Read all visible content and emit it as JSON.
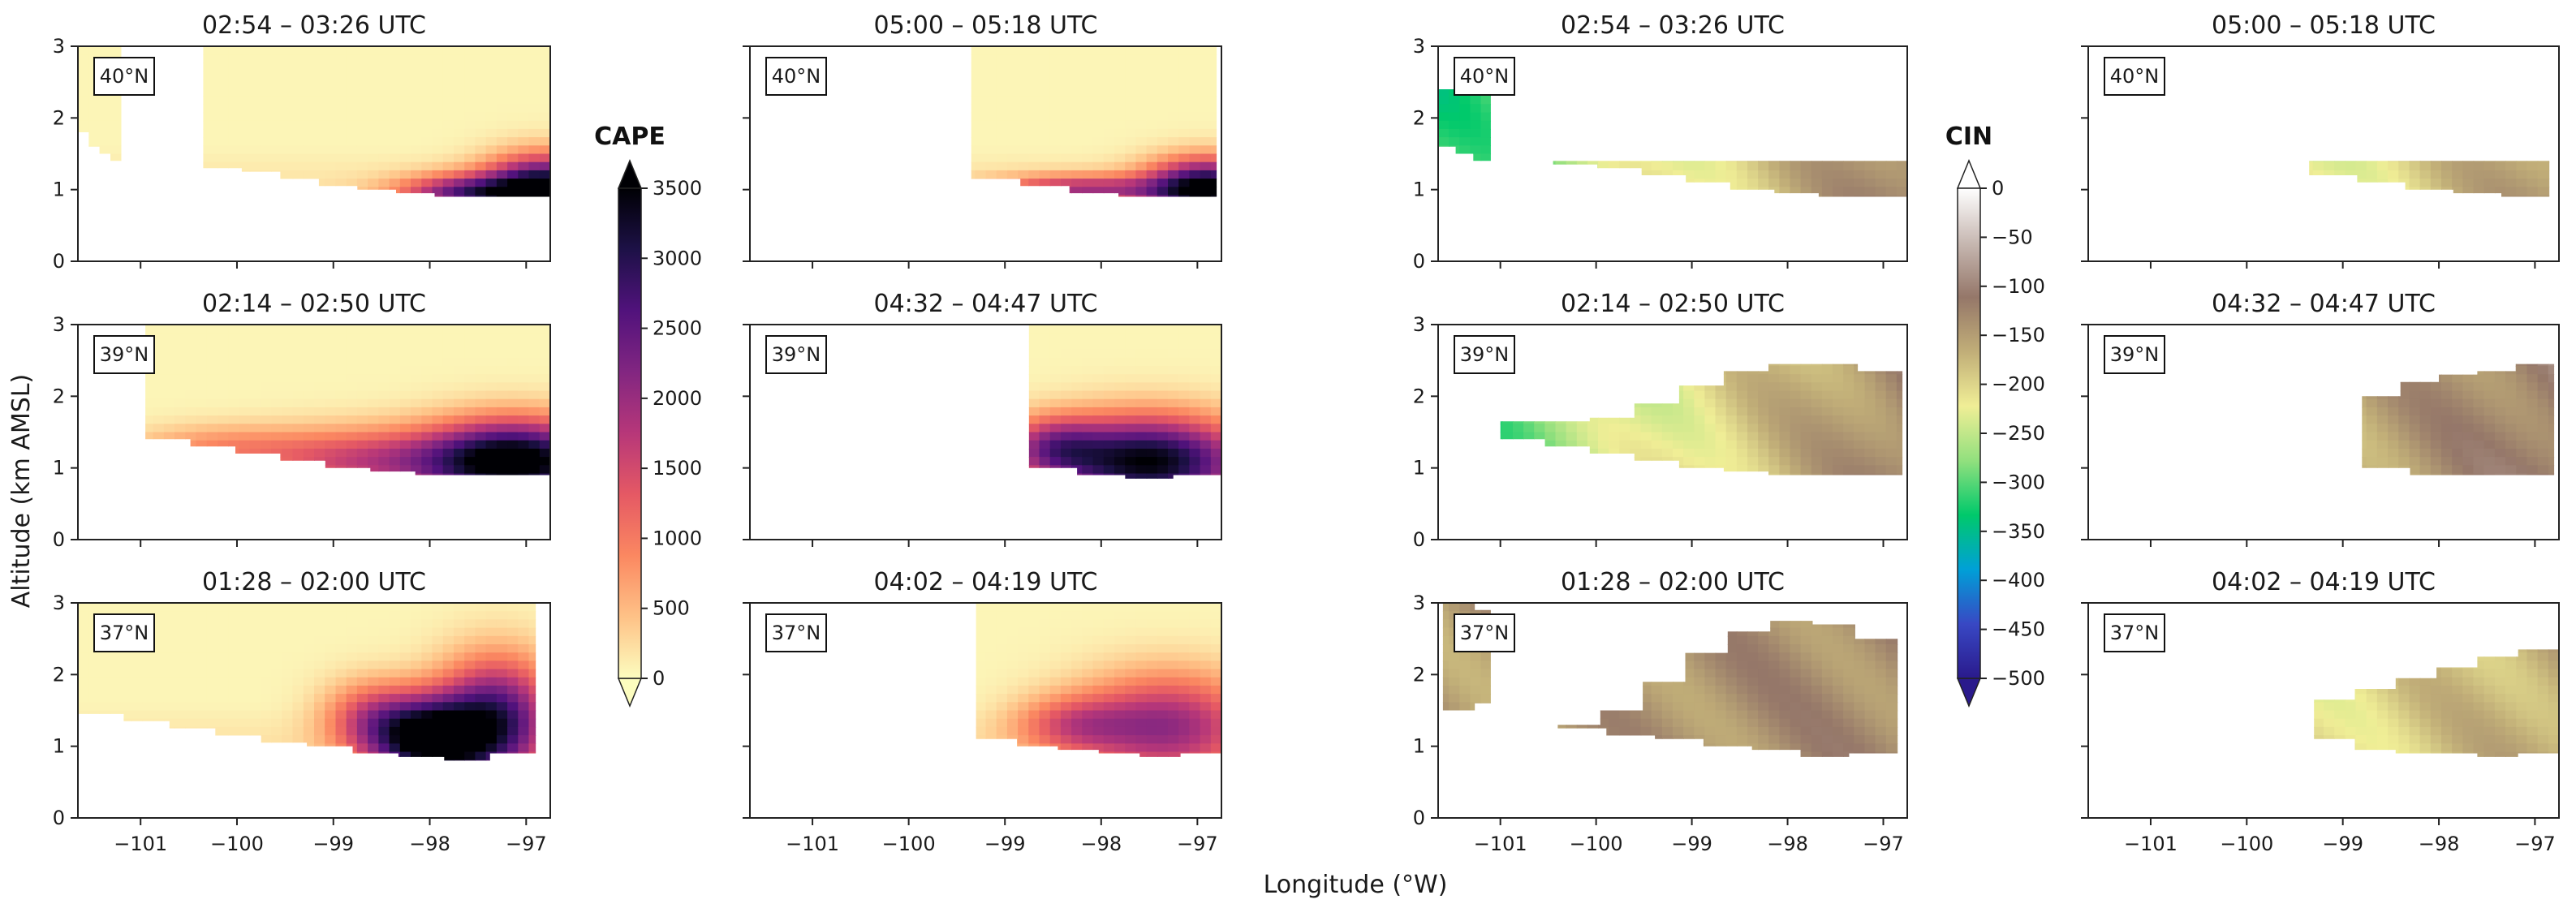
{
  "figure": {
    "xlabel": "Longitude (°W)",
    "ylabel": "Altitude (km AMSL)"
  },
  "colorbars": [
    {
      "id": "cape",
      "title": "CAPE",
      "colormap": "magma_r",
      "ticks": [
        3500,
        3000,
        2500,
        2000,
        1500,
        1000,
        500,
        0
      ],
      "range": [
        0,
        3500
      ]
    },
    {
      "id": "cin",
      "title": "CIN",
      "colormap": "terrain",
      "ticks": [
        0,
        -50,
        -100,
        -150,
        -200,
        -250,
        -300,
        -350,
        -400,
        -450,
        -500
      ],
      "range": [
        -500,
        0
      ]
    }
  ],
  "colors": {
    "cape_stops": [
      "#fcfdbf",
      "#fec287",
      "#fb8861",
      "#e55964",
      "#b73779",
      "#822681",
      "#51127c",
      "#1d1147",
      "#000004"
    ],
    "cin_stops": [
      "#ffffff",
      "#c7b8b2",
      "#957769",
      "#c1ae78",
      "#f0ee96",
      "#92e07e",
      "#00c96b",
      "#00a0d7",
      "#3848c4",
      "#2a1a8c"
    ]
  },
  "chart_data": [
    {
      "type": "heatmap",
      "field": "CAPE",
      "title": "02:54 – 03:26 UTC",
      "lat_label": "40°N",
      "xlim": [
        -101.65,
        -96.75
      ],
      "ylim": [
        0,
        3
      ],
      "xticks": [
        -101,
        -100,
        -99,
        -98,
        -97
      ],
      "xticklabels": [
        "",
        "",
        "",
        "",
        ""
      ],
      "yticks": [
        0,
        1,
        2,
        3
      ],
      "yticklabels": [
        "0",
        "1",
        "2",
        "3"
      ],
      "segments": [
        {
          "x0": -101.65,
          "x1": -101.2,
          "top": 3,
          "floor": [
            1.8,
            1.6,
            1.5,
            1.4
          ]
        },
        {
          "x0": -100.35,
          "x1": -96.75,
          "top": 3,
          "floor": [
            1.3,
            1.25,
            1.15,
            1.05,
            1.0,
            0.95,
            0.9,
            0.9,
            0.9
          ]
        }
      ],
      "cape_peaks": [
        {
          "x": -96.8,
          "y": 1.0,
          "v": 3400,
          "sx": 0.6,
          "sy": 0.45
        },
        {
          "x": -97.6,
          "y": 0.95,
          "v": 2200,
          "sx": 0.7,
          "sy": 0.25
        }
      ]
    },
    {
      "type": "heatmap",
      "field": "CAPE",
      "title": "05:00 – 05:18 UTC",
      "lat_label": "40°N",
      "xlim": [
        -101.65,
        -96.75
      ],
      "ylim": [
        0,
        3
      ],
      "xticks": [
        -101,
        -100,
        -99,
        -98,
        -97
      ],
      "xticklabels": [
        "",
        "",
        "",
        "",
        ""
      ],
      "yticks": [
        0,
        1,
        2,
        3
      ],
      "yticklabels": [
        "",
        "",
        "",
        ""
      ],
      "segments": [
        {
          "x0": -99.35,
          "x1": -96.8,
          "top": 3,
          "floor": [
            1.15,
            1.05,
            0.95,
            0.9,
            0.9
          ]
        }
      ],
      "cape_peaks": [
        {
          "x": -96.9,
          "y": 1.0,
          "v": 3500,
          "sx": 0.6,
          "sy": 0.4
        },
        {
          "x": -98.2,
          "y": 1.0,
          "v": 1700,
          "sx": 0.9,
          "sy": 0.2
        }
      ]
    },
    {
      "type": "heatmap",
      "field": "CIN",
      "title": "02:54 – 03:26 UTC",
      "lat_label": "40°N",
      "xlim": [
        -101.65,
        -96.75
      ],
      "ylim": [
        0,
        3
      ],
      "xticks": [
        -101,
        -100,
        -99,
        -98,
        -97
      ],
      "xticklabels": [
        "",
        "",
        "",
        "",
        ""
      ],
      "yticks": [
        0,
        1,
        2,
        3
      ],
      "yticklabels": [
        "0",
        "1",
        "2",
        "3"
      ],
      "segments": [
        {
          "x0": -101.65,
          "x1": -101.1,
          "top": 2.4,
          "floor": [
            1.6,
            1.5,
            1.4
          ]
        },
        {
          "x0": -100.45,
          "x1": -96.75,
          "top": 1.4,
          "floor": [
            1.35,
            1.3,
            1.2,
            1.1,
            1.0,
            0.95,
            0.9,
            0.9
          ]
        }
      ],
      "cin_field": {
        "left": -320,
        "right": -120,
        "edge": -60
      }
    },
    {
      "type": "heatmap",
      "field": "CIN",
      "title": "05:00 – 05:18 UTC",
      "lat_label": "40°N",
      "xlim": [
        -101.65,
        -96.75
      ],
      "ylim": [
        0,
        3
      ],
      "xticks": [
        -101,
        -100,
        -99,
        -98,
        -97
      ],
      "xticklabels": [
        "",
        "",
        "",
        "",
        ""
      ],
      "yticks": [
        0,
        1,
        2,
        3
      ],
      "yticklabels": [
        "",
        "",
        "",
        ""
      ],
      "segments": [
        {
          "x0": -99.35,
          "x1": -96.85,
          "top": 1.4,
          "floor": [
            1.2,
            1.1,
            1.0,
            0.95,
            0.9
          ]
        }
      ],
      "cin_field": {
        "left": -310,
        "right": -140,
        "edge": -70
      }
    },
    {
      "type": "heatmap",
      "field": "CAPE",
      "title": "02:14 – 02:50 UTC",
      "lat_label": "39°N",
      "xlim": [
        -101.65,
        -96.75
      ],
      "ylim": [
        0,
        3
      ],
      "xticks": [
        -101,
        -100,
        -99,
        -98,
        -97
      ],
      "xticklabels": [
        "",
        "",
        "",
        "",
        ""
      ],
      "yticks": [
        0,
        1,
        2,
        3
      ],
      "yticklabels": [
        "0",
        "1",
        "2",
        "3"
      ],
      "segments": [
        {
          "x0": -100.95,
          "x1": -96.75,
          "top": 3,
          "floor": [
            1.4,
            1.3,
            1.2,
            1.1,
            1.0,
            0.95,
            0.9,
            0.9,
            0.9
          ]
        }
      ],
      "cape_peaks": [
        {
          "x": -97.1,
          "y": 1.1,
          "v": 3500,
          "sx": 0.9,
          "sy": 0.55
        },
        {
          "x": -98.6,
          "y": 1.1,
          "v": 1400,
          "sx": 1.2,
          "sy": 0.45
        },
        {
          "x": -100.2,
          "y": 1.3,
          "v": 600,
          "sx": 0.9,
          "sy": 0.3
        }
      ]
    },
    {
      "type": "heatmap",
      "field": "CAPE",
      "title": "04:32 – 04:47 UTC",
      "lat_label": "39°N",
      "xlim": [
        -101.65,
        -96.75
      ],
      "ylim": [
        0,
        3
      ],
      "xticks": [
        -101,
        -100,
        -99,
        -98,
        -97
      ],
      "xticklabels": [
        "",
        "",
        "",
        "",
        ""
      ],
      "yticks": [
        0,
        1,
        2,
        3
      ],
      "yticklabels": [
        "",
        "",
        "",
        ""
      ],
      "segments": [
        {
          "x0": -98.75,
          "x1": -96.75,
          "top": 3,
          "floor": [
            1.0,
            0.9,
            0.85,
            0.9
          ]
        }
      ],
      "cape_peaks": [
        {
          "x": -97.5,
          "y": 1.1,
          "v": 3300,
          "sx": 1.0,
          "sy": 0.6
        },
        {
          "x": -98.5,
          "y": 1.3,
          "v": 1500,
          "sx": 0.5,
          "sy": 0.4
        }
      ]
    },
    {
      "type": "heatmap",
      "field": "CIN",
      "title": "02:14 – 02:50 UTC",
      "lat_label": "39°N",
      "xlim": [
        -101.65,
        -96.75
      ],
      "ylim": [
        0,
        3
      ],
      "xticks": [
        -101,
        -100,
        -99,
        -98,
        -97
      ],
      "xticklabels": [
        "",
        "",
        "",
        "",
        ""
      ],
      "yticks": [
        0,
        1,
        2,
        3
      ],
      "yticklabels": [
        "0",
        "1",
        "2",
        "3"
      ],
      "segments": [
        {
          "x0": -101.0,
          "x1": -96.8,
          "top_line": [
            1.65,
            1.65,
            1.7,
            1.9,
            2.15,
            2.35,
            2.45,
            2.45,
            2.35
          ],
          "floor": [
            1.4,
            1.3,
            1.2,
            1.1,
            1.0,
            0.95,
            0.9,
            0.9,
            0.9
          ]
        }
      ],
      "cin_field": {
        "left": -320,
        "right": -120,
        "edge": -60
      }
    },
    {
      "type": "heatmap",
      "field": "CIN",
      "title": "04:32 – 04:47 UTC",
      "lat_label": "39°N",
      "xlim": [
        -101.65,
        -96.75
      ],
      "ylim": [
        0,
        3
      ],
      "xticks": [
        -101,
        -100,
        -99,
        -98,
        -97
      ],
      "xticklabels": [
        "",
        "",
        "",
        "",
        ""
      ],
      "yticks": [
        0,
        1,
        2,
        3
      ],
      "yticklabels": [
        "",
        "",
        "",
        ""
      ],
      "segments": [
        {
          "x0": -98.8,
          "x1": -96.8,
          "top_line": [
            2.0,
            2.2,
            2.3,
            2.35,
            2.45
          ],
          "floor": [
            1.0,
            0.9,
            0.9,
            0.9
          ]
        }
      ],
      "cin_field": {
        "left": -220,
        "right": -110,
        "edge": -60
      }
    },
    {
      "type": "heatmap",
      "field": "CAPE",
      "title": "01:28 – 02:00 UTC",
      "lat_label": "37°N",
      "xlim": [
        -101.65,
        -96.75
      ],
      "ylim": [
        0,
        3
      ],
      "xticks": [
        -101,
        -100,
        -99,
        -98,
        -97
      ],
      "xticklabels": [
        "−101",
        "−100",
        "−99",
        "−98",
        "−97"
      ],
      "yticks": [
        0,
        1,
        2,
        3
      ],
      "yticklabels": [
        "0",
        "1",
        "2",
        "3"
      ],
      "segments": [
        {
          "x0": -101.65,
          "x1": -96.9,
          "top": 3,
          "floor": [
            1.45,
            1.35,
            1.25,
            1.15,
            1.05,
            1.0,
            0.9,
            0.85,
            0.8,
            0.9
          ]
        }
      ],
      "cape_peaks": [
        {
          "x": -98.0,
          "y": 1.1,
          "v": 3500,
          "sx": 0.6,
          "sy": 0.55
        },
        {
          "x": -97.3,
          "y": 1.4,
          "v": 2600,
          "sx": 0.6,
          "sy": 0.8
        },
        {
          "x": -98.6,
          "y": 1.4,
          "v": 1200,
          "sx": 0.5,
          "sy": 0.5
        }
      ]
    },
    {
      "type": "heatmap",
      "field": "CAPE",
      "title": "04:02 – 04:19 UTC",
      "lat_label": "37°N",
      "xlim": [
        -101.65,
        -96.75
      ],
      "ylim": [
        0,
        3
      ],
      "xticks": [
        -101,
        -100,
        -99,
        -98,
        -97
      ],
      "xticklabels": [
        "−101",
        "−100",
        "−99",
        "−98",
        "−97"
      ],
      "yticks": [
        0,
        1,
        2,
        3
      ],
      "yticklabels": [
        "",
        "",
        "",
        ""
      ],
      "segments": [
        {
          "x0": -99.3,
          "x1": -96.75,
          "top": 3,
          "floor": [
            1.1,
            1.0,
            0.95,
            0.9,
            0.85,
            0.9
          ]
        }
      ],
      "cape_peaks": [
        {
          "x": -97.3,
          "y": 1.3,
          "v": 1900,
          "sx": 0.9,
          "sy": 0.7
        },
        {
          "x": -98.3,
          "y": 1.3,
          "v": 1100,
          "sx": 0.6,
          "sy": 0.4
        }
      ]
    },
    {
      "type": "heatmap",
      "field": "CIN",
      "title": "01:28 – 02:00 UTC",
      "lat_label": "37°N",
      "xlim": [
        -101.65,
        -96.75
      ],
      "ylim": [
        0,
        3
      ],
      "xticks": [
        -101,
        -100,
        -99,
        -98,
        -97
      ],
      "xticklabels": [
        "−101",
        "−100",
        "−99",
        "−98",
        "−97"
      ],
      "yticks": [
        0,
        1,
        2,
        3
      ],
      "yticklabels": [
        "0",
        "1",
        "2",
        "3"
      ],
      "segments": [
        {
          "x0": -101.6,
          "x1": -101.1,
          "top_line": [
            3.0,
            3.0,
            2.9
          ],
          "floor": [
            1.5,
            1.5,
            1.6
          ]
        },
        {
          "x0": -100.4,
          "x1": -96.85,
          "top_line": [
            1.3,
            1.5,
            1.9,
            2.3,
            2.6,
            2.75,
            2.7,
            2.5
          ],
          "floor": [
            1.25,
            1.15,
            1.1,
            1.0,
            0.95,
            0.85,
            0.9
          ]
        }
      ],
      "cin_field": {
        "left": -150,
        "right": -130,
        "edge": -60
      }
    },
    {
      "type": "heatmap",
      "field": "CIN",
      "title": "04:02 – 04:19 UTC",
      "lat_label": "37°N",
      "xlim": [
        -101.65,
        -96.75
      ],
      "ylim": [
        0,
        3
      ],
      "xticks": [
        -101,
        -100,
        -99,
        -98,
        -97
      ],
      "xticklabels": [
        "−101",
        "−100",
        "−99",
        "−98",
        "−97"
      ],
      "yticks": [
        0,
        1,
        2,
        3
      ],
      "yticklabels": [
        "",
        "",
        "",
        ""
      ],
      "segments": [
        {
          "x0": -99.3,
          "x1": -96.75,
          "top_line": [
            1.65,
            1.8,
            1.95,
            2.1,
            2.25,
            2.35
          ],
          "floor": [
            1.1,
            0.95,
            0.9,
            0.9,
            0.85,
            0.9
          ]
        }
      ],
      "cin_field": {
        "left": -260,
        "right": -160,
        "edge": -80
      }
    }
  ]
}
